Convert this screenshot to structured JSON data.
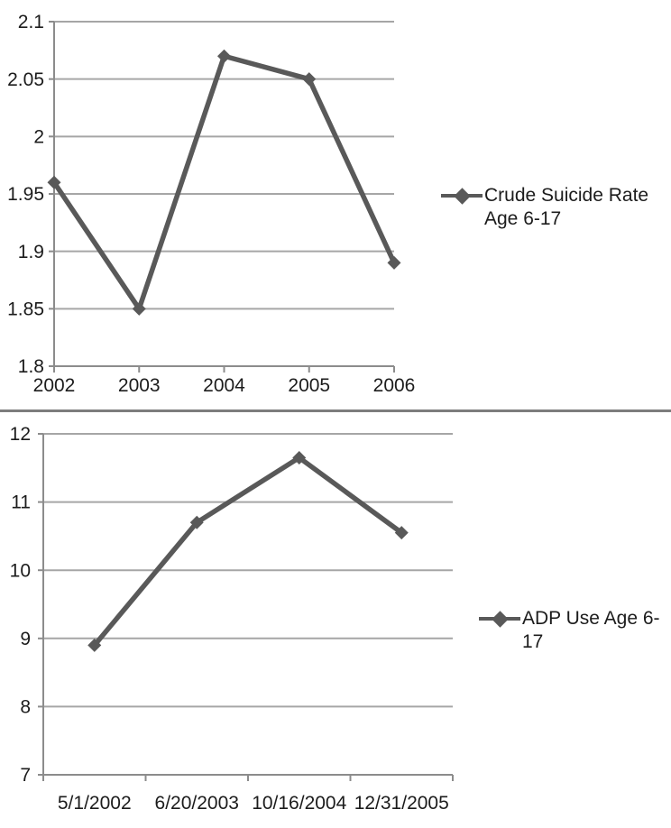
{
  "colors": {
    "series": "#595959",
    "grid": "#a6a6a6",
    "axis": "#8c8c8c",
    "text": "#1c1c1c",
    "divider": "#7d7d7d"
  },
  "chart_data": [
    {
      "type": "line",
      "title": "",
      "categories": [
        "2002",
        "2003",
        "2004",
        "2005",
        "2006"
      ],
      "series": [
        {
          "name": "Crude Suicide Rate Age 6-17",
          "values": [
            1.96,
            1.85,
            2.07,
            2.05,
            1.89
          ]
        }
      ],
      "ylim": [
        1.8,
        2.1
      ],
      "yticks": [
        "2.1",
        "2.05",
        "2",
        "1.95",
        "1.9",
        "1.85",
        "1.8"
      ],
      "legend_lines": [
        "Crude Suicide Rate",
        "Age 6-17"
      ],
      "legend_position": "right",
      "marker": "diamond",
      "grid": true,
      "points_on_ticks": true
    },
    {
      "type": "line",
      "title": "",
      "categories": [
        "5/1/2002",
        "6/20/2003",
        "10/16/2004",
        "12/31/2005"
      ],
      "series": [
        {
          "name": "ADP Use Age 6-17",
          "values": [
            8.9,
            10.7,
            11.65,
            10.55
          ]
        }
      ],
      "ylim": [
        7,
        12
      ],
      "yticks": [
        "12",
        "11",
        "10",
        "9",
        "8",
        "7"
      ],
      "legend_lines": [
        "ADP Use Age 6-17"
      ],
      "legend_position": "right",
      "marker": "diamond",
      "grid": true,
      "points_on_ticks": false
    }
  ]
}
